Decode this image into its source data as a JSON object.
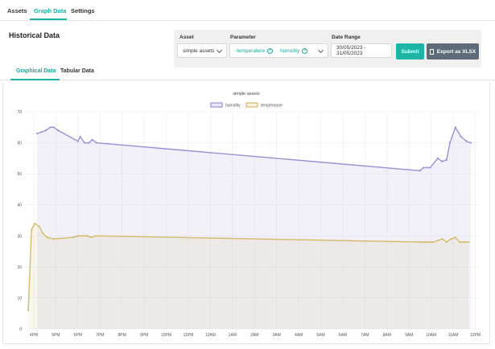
{
  "top_tabs": [
    {
      "label": "Assets",
      "active": false
    },
    {
      "label": "Graph Data",
      "active": true
    },
    {
      "label": "Settings",
      "active": false
    }
  ],
  "section_title": "Historical Data",
  "filters": {
    "asset": {
      "label": "Asset",
      "value": "simple assets"
    },
    "parameter": {
      "label": "Parameter",
      "chips": [
        "temperature",
        "humidity"
      ]
    },
    "date_range": {
      "label": "Date Range",
      "value": "30/05/2023 - 31/05/2023"
    },
    "submit_label": "Submit",
    "export_label": "Export as XLSX"
  },
  "sub_tabs": [
    {
      "label": "Graphical Data",
      "active": true
    },
    {
      "label": "Tabular Data",
      "active": false
    }
  ],
  "colors": {
    "accent": "#17b3a3",
    "humidity": "#9b8fd6",
    "temperature": "#d4bb6a"
  },
  "chart_data": {
    "type": "area",
    "title": "simple assets",
    "legend": [
      "humidity",
      "temperature"
    ],
    "legend_position": "top-center",
    "ylim": [
      0,
      70
    ],
    "yticks": [
      0,
      10,
      20,
      30,
      40,
      50,
      60,
      70
    ],
    "xlim": [
      3.6,
      24.2
    ],
    "xtick_labels": [
      "4PM",
      "5PM",
      "6PM",
      "7PM",
      "8PM",
      "9PM",
      "10PM",
      "11PM",
      "12AM",
      "1AM",
      "2AM",
      "3AM",
      "4AM",
      "5AM",
      "6AM",
      "7AM",
      "8AM",
      "9AM",
      "10AM",
      "11AM",
      "12PM"
    ],
    "grid": true,
    "series": [
      {
        "name": "humidity",
        "x": [
          4.15,
          4.35,
          4.55,
          4.75,
          4.9,
          5.1,
          6.0,
          6.1,
          6.3,
          6.5,
          6.65,
          6.85,
          21.5,
          21.65,
          21.8,
          21.95,
          22.3,
          22.5,
          22.7,
          22.85,
          23.1,
          23.35,
          23.6,
          23.8
        ],
        "y": [
          63,
          63.5,
          64,
          65,
          65,
          64,
          60.5,
          62,
          60,
          60,
          61,
          60,
          51,
          52,
          52,
          52,
          55,
          54,
          54.5,
          60,
          65,
          62,
          60.5,
          60
        ]
      },
      {
        "name": "temperature",
        "x": [
          3.75,
          3.9,
          4.05,
          4.25,
          4.4,
          4.6,
          4.9,
          5.8,
          6.0,
          6.2,
          6.4,
          6.6,
          6.8,
          21.5,
          21.7,
          21.9,
          22.1,
          22.3,
          22.5,
          22.7,
          22.9,
          23.1,
          23.3,
          23.5,
          23.7
        ],
        "y": [
          6,
          32,
          34,
          33,
          31,
          29.5,
          29,
          29.5,
          30,
          30,
          30,
          29.5,
          30,
          28,
          28,
          28,
          28,
          28.5,
          29,
          28,
          29,
          29.5,
          28,
          28,
          28
        ]
      }
    ]
  }
}
